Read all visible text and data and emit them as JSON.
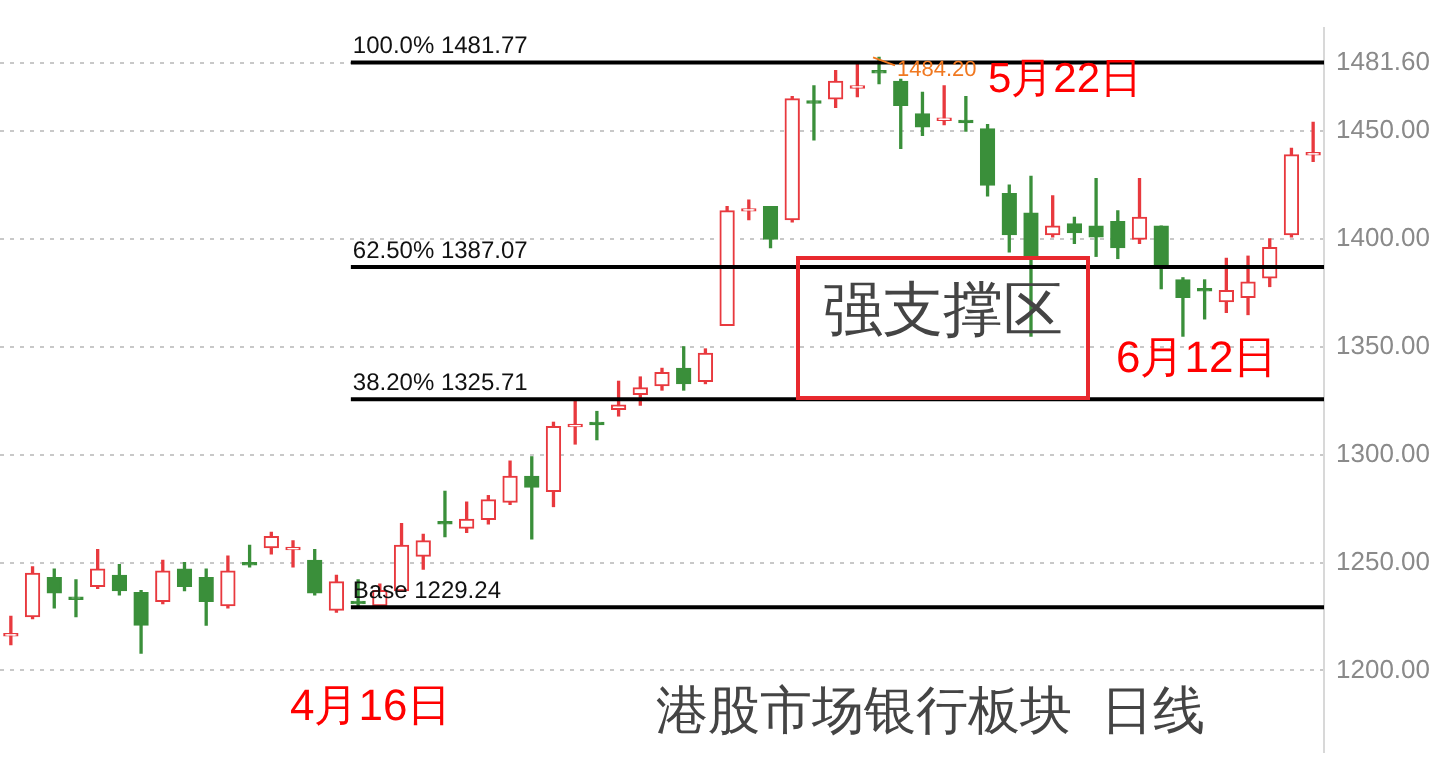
{
  "chart_data": {
    "type": "candlestick",
    "categories": [
      null,
      null,
      null,
      null,
      null,
      null,
      null,
      null,
      null,
      null,
      null,
      null,
      null,
      null,
      null,
      null,
      null,
      null,
      null,
      null,
      null,
      null,
      null,
      null,
      null,
      null,
      null,
      null,
      null,
      null,
      null,
      null,
      null,
      null,
      null,
      null,
      null,
      null,
      null,
      null,
      null,
      null,
      null,
      null,
      null,
      null,
      null,
      null,
      null,
      null,
      null,
      null,
      null,
      null,
      null,
      null,
      null,
      null,
      null,
      null,
      null
    ],
    "ohlc": [
      [
        1216,
        1225,
        1212,
        1217
      ],
      [
        1225,
        1248,
        1224,
        1245
      ],
      [
        1243,
        1247,
        1229,
        1236
      ],
      [
        1234,
        1242,
        1225,
        1233
      ],
      [
        1239,
        1256,
        1238,
        1247
      ],
      [
        1244,
        1249,
        1235,
        1237
      ],
      [
        1236,
        1237,
        1208,
        1221
      ],
      [
        1232,
        1251,
        1231,
        1246
      ],
      [
        1247,
        1250,
        1237,
        1239
      ],
      [
        1243,
        1247,
        1221,
        1232
      ],
      [
        1230,
        1253,
        1229,
        1246
      ],
      [
        1250,
        1258,
        1248,
        1249
      ],
      [
        1257,
        1264,
        1254,
        1262
      ],
      [
        1256,
        1260,
        1248,
        1257
      ],
      [
        1251,
        1256,
        1235,
        1236
      ],
      [
        1228,
        1244,
        1227,
        1241
      ],
      [
        1232,
        1242,
        1229.24,
        1231
      ],
      [
        1230,
        1240,
        1229.5,
        1237
      ],
      [
        1237,
        1268,
        1237,
        1258
      ],
      [
        1253,
        1263,
        1247,
        1260
      ],
      [
        1269,
        1283,
        1262,
        1268
      ],
      [
        1266,
        1278,
        1264,
        1270
      ],
      [
        1270,
        1281,
        1268,
        1279
      ],
      [
        1278,
        1297,
        1277,
        1290
      ],
      [
        1290,
        1299,
        1261,
        1285
      ],
      [
        1283,
        1315,
        1276,
        1313
      ],
      [
        1313,
        1325,
        1305,
        1314
      ],
      [
        1315,
        1320,
        1307,
        1314
      ],
      [
        1321,
        1334,
        1318,
        1323
      ],
      [
        1328,
        1336,
        1323,
        1331
      ],
      [
        1332,
        1340,
        1330,
        1338
      ],
      [
        1340,
        1350,
        1330,
        1333
      ],
      [
        1334,
        1349,
        1333,
        1347
      ],
      [
        1360,
        1415,
        1360,
        1413
      ],
      [
        1413,
        1418,
        1409,
        1414
      ],
      [
        1415,
        1415,
        1396,
        1400
      ],
      [
        1409,
        1466,
        1408,
        1465
      ],
      [
        1464,
        1471,
        1446,
        1463
      ],
      [
        1465,
        1478,
        1461,
        1473
      ],
      [
        1470,
        1482,
        1466,
        1471
      ],
      [
        1478,
        1484.2,
        1472,
        1477
      ],
      [
        1473,
        1474,
        1442,
        1462
      ],
      [
        1458,
        1468,
        1448,
        1452
      ],
      [
        1455,
        1471,
        1453,
        1456
      ],
      [
        1455,
        1466,
        1450,
        1454
      ],
      [
        1451,
        1453,
        1420,
        1425
      ],
      [
        1421,
        1425,
        1394,
        1402
      ],
      [
        1412,
        1429,
        1355,
        1391
      ],
      [
        1402,
        1420,
        1401,
        1406
      ],
      [
        1407,
        1410,
        1398,
        1403
      ],
      [
        1406,
        1428,
        1392,
        1401
      ],
      [
        1408,
        1413,
        1391,
        1396
      ],
      [
        1400,
        1428,
        1398,
        1410
      ],
      [
        1406,
        1406,
        1377,
        1387
      ],
      [
        1381,
        1382,
        1355,
        1373
      ],
      [
        1377,
        1381,
        1363,
        1376
      ],
      [
        1371,
        1391,
        1366,
        1376
      ],
      [
        1373,
        1392,
        1365,
        1380
      ],
      [
        1382,
        1400,
        1378,
        1396
      ],
      [
        1402,
        1442,
        1401,
        1439
      ],
      [
        1439,
        1454,
        1436,
        1440
      ]
    ],
    "colors": [
      "#e8393e",
      "#e8393e",
      "#3a8f3a",
      "#3a8f3a",
      "#e8393e",
      "#3a8f3a",
      "#3a8f3a",
      "#e8393e",
      "#3a8f3a",
      "#3a8f3a",
      "#e8393e",
      "#3a8f3a",
      "#e8393e",
      "#e8393e",
      "#3a8f3a",
      "#e8393e",
      "#3a8f3a",
      "#e8393e",
      "#e8393e",
      "#e8393e",
      "#3a8f3a",
      "#e8393e",
      "#e8393e",
      "#e8393e",
      "#3a8f3a",
      "#e8393e",
      "#e8393e",
      "#3a8f3a",
      "#e8393e",
      "#e8393e",
      "#e8393e",
      "#3a8f3a",
      "#e8393e",
      "#e8393e",
      "#e8393e",
      "#3a8f3a",
      "#e8393e",
      "#3a8f3a",
      "#e8393e",
      "#e8393e",
      "#3a8f3a",
      "#3a8f3a",
      "#3a8f3a",
      "#e8393e",
      "#3a8f3a",
      "#3a8f3a",
      "#3a8f3a",
      "#3a8f3a",
      "#e8393e",
      "#3a8f3a",
      "#3a8f3a",
      "#3a8f3a",
      "#e8393e",
      "#3a8f3a",
      "#3a8f3a",
      "#3a8f3a",
      "#e8393e",
      "#e8393e",
      "#e8393e",
      "#e8393e",
      "#e8393e"
    ],
    "ylim": [
      1162,
      1498
    ],
    "yticks": [
      {
        "value": 1200,
        "label": "1200.00"
      },
      {
        "value": 1250,
        "label": "1250.00"
      },
      {
        "value": 1300,
        "label": "1300.00"
      },
      {
        "value": 1350,
        "label": "1350.00"
      },
      {
        "value": 1400,
        "label": "1400.00"
      },
      {
        "value": 1450,
        "label": "1450.00"
      },
      {
        "value": 1481.6,
        "label": "1481.60"
      }
    ],
    "tick_labels": "y",
    "grid": "y",
    "ref_lines": [
      {
        "axis": "y",
        "value": 1481.77,
        "label": "100.0% 1481.77",
        "color": "#000000"
      },
      {
        "axis": "y",
        "value": 1387.07,
        "label": "62.50% 1387.07",
        "color": "#000000"
      },
      {
        "axis": "y",
        "value": 1325.71,
        "label": "38.20% 1325.71",
        "color": "#000000"
      },
      {
        "axis": "y",
        "value": 1229.24,
        "label": "Base 1229.24",
        "color": "#000000"
      }
    ],
    "annotations": [
      {
        "text": "1484.20",
        "y": 1484.2
      },
      "5月22日",
      "强支撑区",
      "6月12日",
      "4月16日",
      "港股市场银行板块  日线"
    ]
  }
}
